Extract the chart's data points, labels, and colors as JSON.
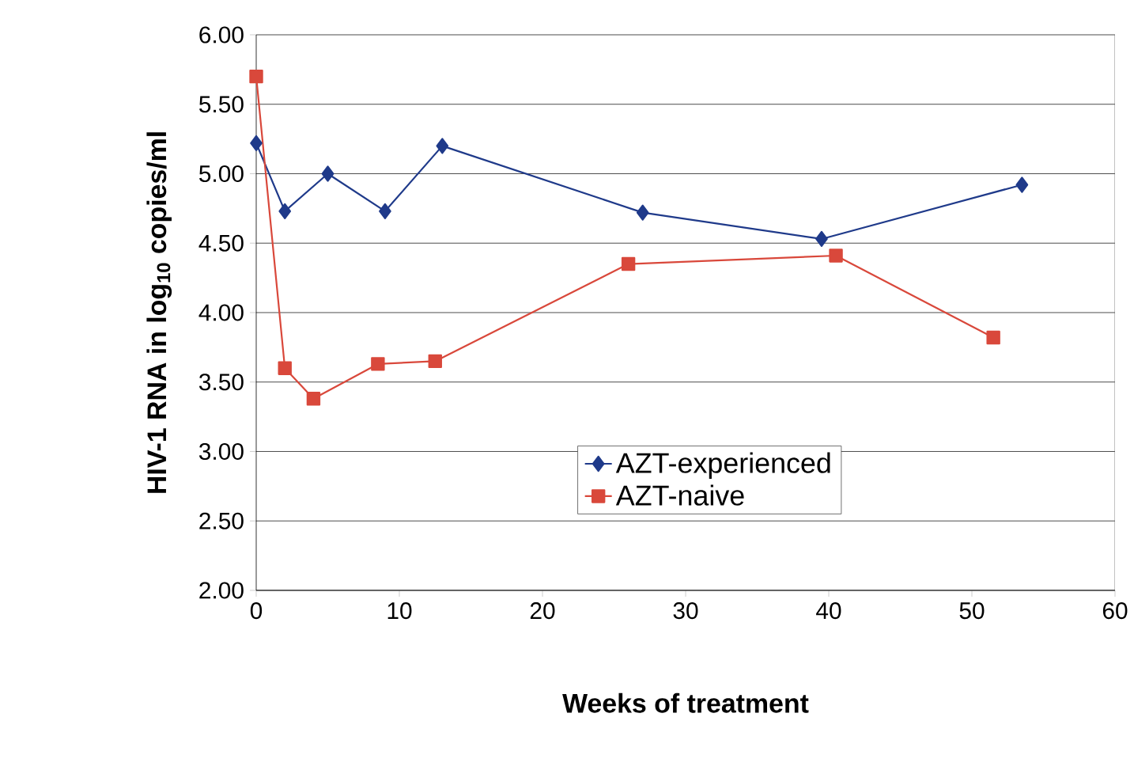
{
  "chart_data": {
    "type": "line",
    "xlabel": "Weeks of treatment",
    "ylabel": "HIV-1 RNA in log$_{10}$ copies/ml",
    "xlim": [
      0,
      60
    ],
    "xticks": [
      0,
      10,
      20,
      30,
      40,
      50,
      60
    ],
    "ylim": [
      2,
      6
    ],
    "yticks": [
      {
        "value": 2,
        "label": "2.00"
      },
      {
        "value": 2.5,
        "label": "2.50"
      },
      {
        "value": 3,
        "label": "3.00"
      },
      {
        "value": 3.5,
        "label": "3.50"
      },
      {
        "value": 4,
        "label": "4.00"
      },
      {
        "value": 4.5,
        "label": "4.50"
      },
      {
        "value": 5,
        "label": "5.00"
      },
      {
        "value": 5.5,
        "label": "5.50"
      },
      {
        "value": 6,
        "label": "6.00"
      }
    ],
    "grid": "y",
    "legend": "right",
    "line_style": "solid",
    "series": [
      {
        "name": "AZT-experienced",
        "color": "#1f3a8a",
        "marker": "diamond",
        "x": [
          0,
          2,
          5,
          9,
          13,
          27,
          39.5,
          53.5
        ],
        "values": [
          5.22,
          4.73,
          5.0,
          4.73,
          5.2,
          4.72,
          4.53,
          4.92
        ]
      },
      {
        "name": "AZT-naive",
        "color": "#d9483b",
        "marker": "square",
        "x": [
          0,
          2,
          4,
          8.5,
          12.5,
          26,
          40.5,
          51.5
        ],
        "values": [
          5.7,
          3.6,
          3.38,
          3.63,
          3.65,
          4.35,
          4.41,
          3.82
        ]
      }
    ]
  }
}
